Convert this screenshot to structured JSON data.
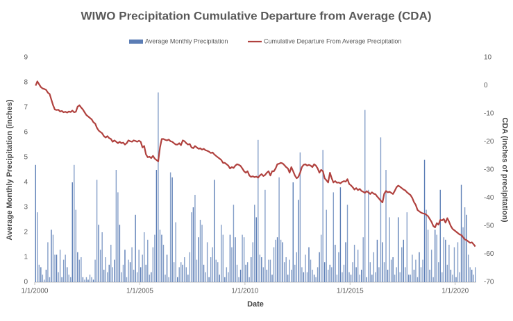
{
  "chart_data": {
    "type": "combo",
    "title": "WIWO Precipitation Cumulative Departure from Average (CDA)",
    "x_label": "Date",
    "y_label": "Average Monthly Precipitation (inches)",
    "y2_label": "CDA (inches of precipitation)",
    "xlim": [
      "1/1/2000",
      "1/1/2021"
    ],
    "xticks": [
      "1/1/2000",
      "1/1/2005",
      "1/1/2010",
      "1/1/2015",
      "1/1/2020"
    ],
    "ylim": [
      0,
      9
    ],
    "yticks": [
      0,
      1,
      2,
      3,
      4,
      5,
      6,
      7,
      8,
      9
    ],
    "y2lim": [
      -70,
      10
    ],
    "y2ticks": [
      -70,
      -60,
      -50,
      -40,
      -30,
      -20,
      -10,
      0,
      10
    ],
    "legend": "top",
    "x": [
      "1/1/2000",
      "2/1/2000",
      "3/1/2000",
      "4/1/2000",
      "5/1/2000",
      "6/1/2000",
      "7/1/2000",
      "8/1/2000",
      "9/1/2000",
      "10/1/2000",
      "11/1/2000",
      "12/1/2000",
      "1/1/2001",
      "2/1/2001",
      "3/1/2001",
      "4/1/2001",
      "5/1/2001",
      "6/1/2001",
      "7/1/2001",
      "8/1/2001",
      "9/1/2001",
      "10/1/2001",
      "11/1/2001",
      "12/1/2001",
      "1/1/2002",
      "2/1/2002",
      "3/1/2002",
      "4/1/2002",
      "5/1/2002",
      "6/1/2002",
      "7/1/2002",
      "8/1/2002",
      "9/1/2002",
      "10/1/2002",
      "11/1/2002",
      "12/1/2002",
      "1/1/2003",
      "2/1/2003",
      "3/1/2003",
      "4/1/2003",
      "5/1/2003",
      "6/1/2003",
      "7/1/2003",
      "8/1/2003",
      "9/1/2003",
      "10/1/2003",
      "11/1/2003",
      "12/1/2003",
      "1/1/2004",
      "2/1/2004",
      "3/1/2004",
      "4/1/2004",
      "5/1/2004",
      "6/1/2004",
      "7/1/2004",
      "8/1/2004",
      "9/1/2004",
      "10/1/2004",
      "11/1/2004",
      "12/1/2004",
      "1/1/2005",
      "2/1/2005",
      "3/1/2005",
      "4/1/2005",
      "5/1/2005",
      "6/1/2005",
      "7/1/2005",
      "8/1/2005",
      "9/1/2005",
      "10/1/2005",
      "11/1/2005",
      "12/1/2005",
      "1/1/2006",
      "2/1/2006",
      "3/1/2006",
      "4/1/2006",
      "5/1/2006",
      "6/1/2006",
      "7/1/2006",
      "8/1/2006",
      "9/1/2006",
      "10/1/2006",
      "11/1/2006",
      "12/1/2006",
      "1/1/2007",
      "2/1/2007",
      "3/1/2007",
      "4/1/2007",
      "5/1/2007",
      "6/1/2007",
      "7/1/2007",
      "8/1/2007",
      "9/1/2007",
      "10/1/2007",
      "11/1/2007",
      "12/1/2007",
      "1/1/2008",
      "2/1/2008",
      "3/1/2008",
      "4/1/2008",
      "5/1/2008",
      "6/1/2008",
      "7/1/2008",
      "8/1/2008",
      "9/1/2008",
      "10/1/2008",
      "11/1/2008",
      "12/1/2008",
      "1/1/2009",
      "2/1/2009",
      "3/1/2009",
      "4/1/2009",
      "5/1/2009",
      "6/1/2009",
      "7/1/2009",
      "8/1/2009",
      "9/1/2009",
      "10/1/2009",
      "11/1/2009",
      "12/1/2009",
      "1/1/2010",
      "2/1/2010",
      "3/1/2010",
      "4/1/2010",
      "5/1/2010",
      "6/1/2010",
      "7/1/2010",
      "8/1/2010",
      "9/1/2010",
      "10/1/2010",
      "11/1/2010",
      "12/1/2010",
      "1/1/2011",
      "2/1/2011",
      "3/1/2011",
      "4/1/2011",
      "5/1/2011",
      "6/1/2011",
      "7/1/2011",
      "8/1/2011",
      "9/1/2011",
      "10/1/2011",
      "11/1/2011",
      "12/1/2011",
      "1/1/2012",
      "2/1/2012",
      "3/1/2012",
      "4/1/2012",
      "5/1/2012",
      "6/1/2012",
      "7/1/2012",
      "8/1/2012",
      "9/1/2012",
      "10/1/2012",
      "11/1/2012",
      "12/1/2012",
      "1/1/2013",
      "2/1/2013",
      "3/1/2013",
      "4/1/2013",
      "5/1/2013",
      "6/1/2013",
      "7/1/2013",
      "8/1/2013",
      "9/1/2013",
      "10/1/2013",
      "11/1/2013",
      "12/1/2013",
      "1/1/2014",
      "2/1/2014",
      "3/1/2014",
      "4/1/2014",
      "5/1/2014",
      "6/1/2014",
      "7/1/2014",
      "8/1/2014",
      "9/1/2014",
      "10/1/2014",
      "11/1/2014",
      "12/1/2014",
      "1/1/2015",
      "2/1/2015",
      "3/1/2015",
      "4/1/2015",
      "5/1/2015",
      "6/1/2015",
      "7/1/2015",
      "8/1/2015",
      "9/1/2015",
      "10/1/2015",
      "11/1/2015",
      "12/1/2015",
      "1/1/2016",
      "2/1/2016",
      "3/1/2016",
      "4/1/2016",
      "5/1/2016",
      "6/1/2016",
      "7/1/2016",
      "8/1/2016",
      "9/1/2016",
      "10/1/2016",
      "11/1/2016",
      "12/1/2016",
      "1/1/2017",
      "2/1/2017",
      "3/1/2017",
      "4/1/2017",
      "5/1/2017",
      "6/1/2017",
      "7/1/2017",
      "8/1/2017",
      "9/1/2017",
      "10/1/2017",
      "11/1/2017",
      "12/1/2017",
      "1/1/2018",
      "2/1/2018",
      "3/1/2018",
      "4/1/2018",
      "5/1/2018",
      "6/1/2018",
      "7/1/2018",
      "8/1/2018",
      "9/1/2018",
      "10/1/2018",
      "11/1/2018",
      "12/1/2018",
      "1/1/2019",
      "2/1/2019",
      "3/1/2019",
      "4/1/2019",
      "5/1/2019",
      "6/1/2019",
      "7/1/2019",
      "8/1/2019",
      "9/1/2019",
      "10/1/2019",
      "11/1/2019",
      "12/1/2019",
      "1/1/2020",
      "2/1/2020",
      "3/1/2020",
      "4/1/2020",
      "5/1/2020",
      "6/1/2020",
      "7/1/2020",
      "8/1/2020",
      "9/1/2020",
      "10/1/2020",
      "11/1/2020",
      "12/1/2020"
    ],
    "series": [
      {
        "name": "Average Monthly Precipitation",
        "type": "bar",
        "color": "#5b7db5",
        "values": [
          4.7,
          2.8,
          0.7,
          0.6,
          0.3,
          0.1,
          0.5,
          1.6,
          0.2,
          2.1,
          1.9,
          1.1,
          1.1,
          0.4,
          1.3,
          0.2,
          0.9,
          1.1,
          0.6,
          0.3,
          0.2,
          4.0,
          4.7,
          2.9,
          1.2,
          0.9,
          1.0,
          0.2,
          0.1,
          0.2,
          0.1,
          0.3,
          0.2,
          0.1,
          0.9,
          4.1,
          2.3,
          1.3,
          2.0,
          0.5,
          1.0,
          0.4,
          0.7,
          1.5,
          0.6,
          0.9,
          4.5,
          3.6,
          2.3,
          0.4,
          0.7,
          1.3,
          0.2,
          0.9,
          0.8,
          1.4,
          0.5,
          2.7,
          0.4,
          1.3,
          0.6,
          1.1,
          2.0,
          0.7,
          1.7,
          0.3,
          0.4,
          1.4,
          1.9,
          4.5,
          7.6,
          2.1,
          1.9,
          1.5,
          0.3,
          1.1,
          0.2,
          4.4,
          4.2,
          0.8,
          2.4,
          0.2,
          0.6,
          0.8,
          0.7,
          1.0,
          0.6,
          0.3,
          1.2,
          2.8,
          3.0,
          3.5,
          0.9,
          1.8,
          2.5,
          2.3,
          0.7,
          0.4,
          1.6,
          0.2,
          1.0,
          1.4,
          4.1,
          0.9,
          0.8,
          0.3,
          2.3,
          1.9,
          0.2,
          0.6,
          0.4,
          1.9,
          1.4,
          3.1,
          1.8,
          0.7,
          0.2,
          0.5,
          1.9,
          1.8,
          0.7,
          0.8,
          0.2,
          1.0,
          1.6,
          3.1,
          2.6,
          5.7,
          1.1,
          1.0,
          0.6,
          3.7,
          0.5,
          0.9,
          0.9,
          0.3,
          1.4,
          1.7,
          1.8,
          4.2,
          1.7,
          1.6,
          0.8,
          1.0,
          0.3,
          0.9,
          0.5,
          4.0,
          0.7,
          1.2,
          3.3,
          5.2,
          0.6,
          0.4,
          1.1,
          0.4,
          1.4,
          0.9,
          0.5,
          0.3,
          0.2,
          0.6,
          1.2,
          1.9,
          5.3,
          0.8,
          2.9,
          0.5,
          0.7,
          0.6,
          3.6,
          1.5,
          0.3,
          1.2,
          3.8,
          0.4,
          0.7,
          1.6,
          3.1,
          0.4,
          0.3,
          0.8,
          1.5,
          0.6,
          1.3,
          0.3,
          0.5,
          1.8,
          6.9,
          0.2,
          3.7,
          0.8,
          0.3,
          1.2,
          0.4,
          1.7,
          0.6,
          5.8,
          1.6,
          0.8,
          4.5,
          0.5,
          2.6,
          0.9,
          1.0,
          0.3,
          0.6,
          2.6,
          0.4,
          1.4,
          1.7,
          0.6,
          2.8,
          0.3,
          0.3,
          1.1,
          0.5,
          0.9,
          0.2,
          1.2,
          0.6,
          0.9,
          4.9,
          2.9,
          2.1,
          0.5,
          1.3,
          0.2,
          2.1,
          1.9,
          0.8,
          3.7,
          0.4,
          1.8,
          1.7,
          0.7,
          1.5,
          0.5,
          0.3,
          1.4,
          0.2,
          1.6,
          0.4,
          3.9,
          2.2,
          3.0,
          2.7,
          1.1,
          0.6,
          0.5,
          0.3,
          0.6
        ]
      },
      {
        "name": "Cumulative Departure From Average Precipitation",
        "type": "line",
        "axis": "y2",
        "color": "#b0413e",
        "values": [
          0,
          1.5,
          0.5,
          -0.5,
          -1,
          -1.2,
          -1.5,
          -2.5,
          -3,
          -5,
          -7,
          -8.5,
          -8.7,
          -8.6,
          -9.2,
          -9,
          -9.5,
          -9.3,
          -9.6,
          -9.2,
          -9.4,
          -8.9,
          -9.5,
          -9.3,
          -7.5,
          -7,
          -7.8,
          -8.5,
          -9.5,
          -10.5,
          -11,
          -11.5,
          -12,
          -13,
          -13.5,
          -15,
          -16,
          -16.5,
          -17,
          -18,
          -18.5,
          -18,
          -18.7,
          -19,
          -20,
          -19.5,
          -20,
          -20.5,
          -20,
          -20.5,
          -20.3,
          -21,
          -20.5,
          -19.5,
          -19.8,
          -20,
          -19.5,
          -19.7,
          -20,
          -19.6,
          -20,
          -22,
          -21.5,
          -24.5,
          -25.5,
          -25.3,
          -25.8,
          -25,
          -26,
          -26.5,
          -27,
          -22,
          -19,
          -19,
          -19.3,
          -19.5,
          -19.2,
          -19.8,
          -20,
          -20.5,
          -21,
          -21,
          -20.5,
          -21.2,
          -19.5,
          -19.8,
          -20.5,
          -21,
          -20.8,
          -22,
          -22.3,
          -21.5,
          -22,
          -22.5,
          -22.3,
          -22.8,
          -22.5,
          -23,
          -23.2,
          -23.5,
          -24,
          -23.8,
          -24.5,
          -25,
          -25.5,
          -26,
          -26.5,
          -27.5,
          -27.5,
          -28,
          -28.5,
          -29.5,
          -29,
          -29.3,
          -28.5,
          -28,
          -28.2,
          -28.6,
          -29.5,
          -30.5,
          -31,
          -30.5,
          -32,
          -32.5,
          -32.3,
          -32.6,
          -32.4,
          -32.8,
          -32,
          -31.5,
          -32.2,
          -31.8,
          -31,
          -30.5,
          -32,
          -30.5,
          -30.5,
          -29.5,
          -28,
          -27.8,
          -27.5,
          -27.7,
          -28.3,
          -29,
          -29.5,
          -31,
          -29,
          -30.5,
          -32,
          -33,
          -32.5,
          -31,
          -29,
          -28.2,
          -28,
          -28.5,
          -28.2,
          -28.5,
          -29,
          -28,
          -28.5,
          -29.5,
          -31,
          -30,
          -30.5,
          -33,
          -33.7,
          -34.5,
          -31,
          -33,
          -34.5,
          -34,
          -34.6,
          -34.5,
          -34.8,
          -34.3,
          -34,
          -34.2,
          -33.3,
          -35,
          -35.5,
          -36.2,
          -37,
          -36.5,
          -37.2,
          -36.8,
          -37.5,
          -37.8,
          -38.2,
          -37.6,
          -38,
          -38.6,
          -38,
          -38.5,
          -38.7,
          -39.5,
          -40.2,
          -41,
          -41.6,
          -38.5,
          -37.5,
          -38,
          -37.8,
          -38.2,
          -38.6,
          -37.5,
          -36.2,
          -35.6,
          -36,
          -36.5,
          -37,
          -37.3,
          -38,
          -38.5,
          -39,
          -40,
          -41.5,
          -42.5,
          -44.3,
          -44.8,
          -45.2,
          -45.5,
          -45.6,
          -46,
          -46.5,
          -47.5,
          -48.5,
          -50,
          -50.5,
          -49,
          -49.5,
          -47.8,
          -48,
          -47.5,
          -48.8,
          -47.2,
          -48.5,
          -50,
          -51,
          -51.5,
          -52,
          -52.5,
          -53,
          -53.2,
          -54,
          -54.8,
          -55,
          -55.5,
          -56,
          -55.8,
          -56.5,
          -57.3
        ]
      }
    ]
  }
}
